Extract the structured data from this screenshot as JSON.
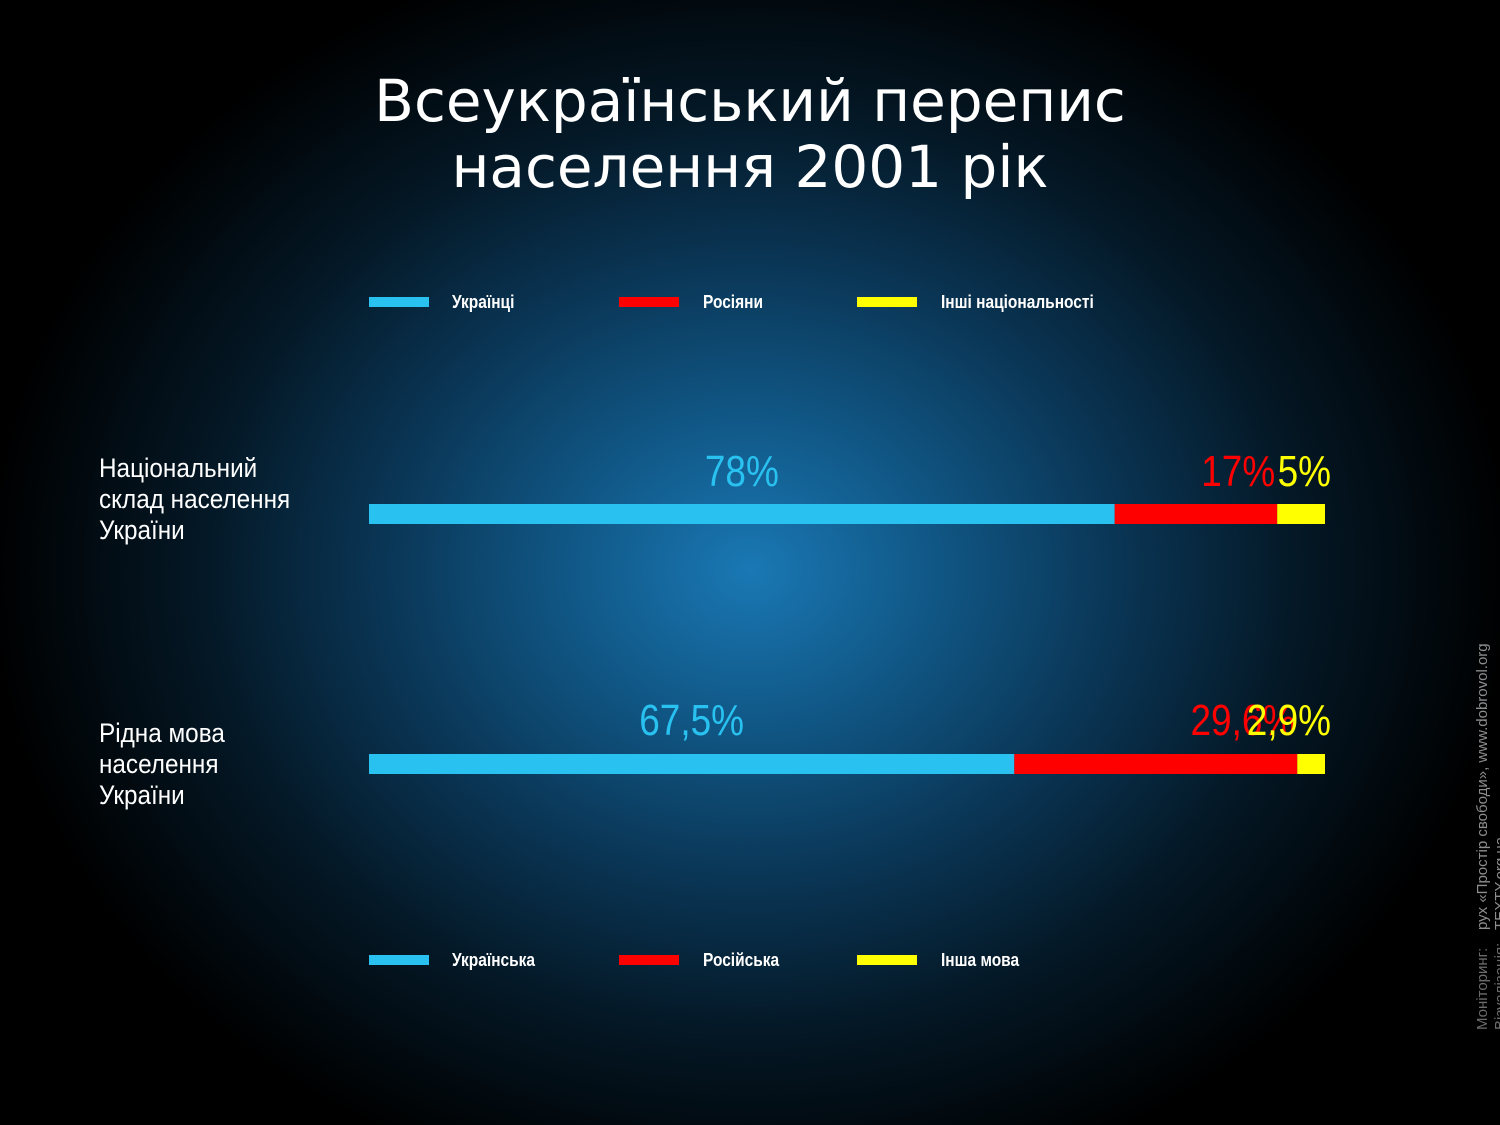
{
  "title": {
    "line1": "Всеукраїнський перепис",
    "line2": "населення 2001 рік"
  },
  "colors": {
    "ukrainian": "#29c1f0",
    "russian": "#ff0000",
    "other": "#ffff00"
  },
  "legend_nationality": [
    {
      "label": "Українці",
      "color": "#29c1f0"
    },
    {
      "label": "Росіяни",
      "color": "#ff0000"
    },
    {
      "label": "Інші національності",
      "color": "#ffff00"
    }
  ],
  "legend_language": [
    {
      "label": "Українська",
      "color": "#29c1f0"
    },
    {
      "label": "Російська",
      "color": "#ff0000"
    },
    {
      "label": "Інша мова",
      "color": "#ffff00"
    }
  ],
  "rows": [
    {
      "label_lines": [
        "Національний",
        "склад населення",
        "України"
      ]
    },
    {
      "label_lines": [
        "Рідна мова",
        "населення",
        "України"
      ]
    }
  ],
  "chart_data": {
    "type": "bar",
    "orientation": "horizontal-stacked",
    "categories": [
      "Національний склад населення України",
      "Рідна мова населення України"
    ],
    "series": [
      {
        "values": [
          78,
          67.5
        ],
        "labels": [
          "78%",
          "67,5%"
        ],
        "color": "#29c1f0"
      },
      {
        "values": [
          17,
          29.6
        ],
        "labels": [
          "17%",
          "29,6%"
        ],
        "color": "#ff0000"
      },
      {
        "values": [
          5,
          2.9
        ],
        "labels": [
          "5%",
          "2,9%"
        ],
        "color": "#ffff00"
      }
    ],
    "grid": false
  },
  "credits": {
    "monitoring_label": "Моніторинг:",
    "monitoring_value": "рух «Простір свободи», www.dobrovol.org",
    "visualization_label": "Візуалізація:",
    "visualization_value": "TEXTY.org.ua"
  }
}
